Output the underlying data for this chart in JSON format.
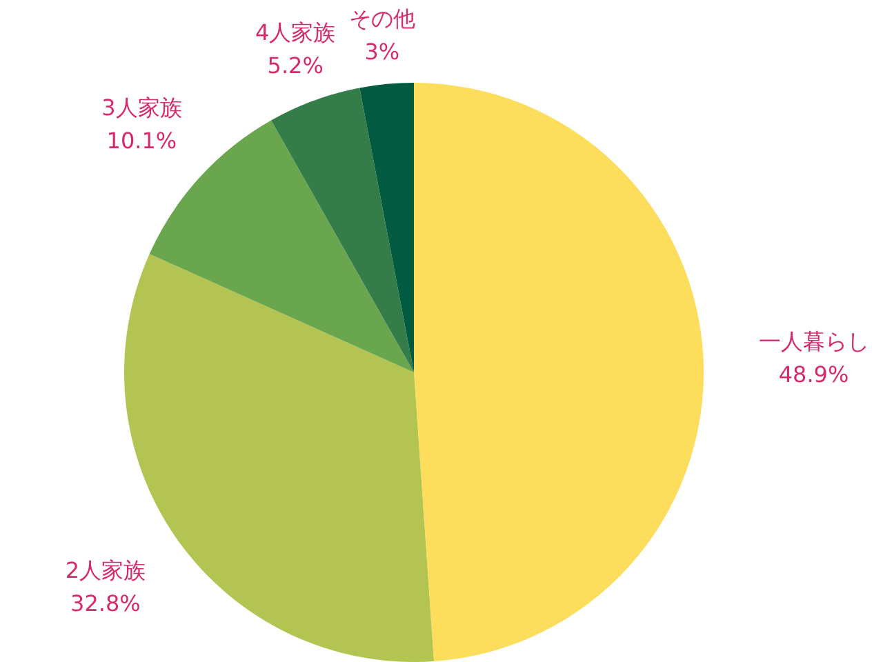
{
  "chart_data": {
    "type": "pie",
    "categories": [
      "一人暮らし",
      "2人家族",
      "3人家族",
      "4人家族",
      "その他"
    ],
    "values": [
      48.9,
      32.8,
      10.1,
      5.2,
      3
    ],
    "colors": [
      "#fddd5c",
      "#b3c453",
      "#6aa64e",
      "#347d49",
      "#025a40"
    ],
    "value_labels": [
      "48.9%",
      "32.8%",
      "10.1%",
      "5.2%",
      "3%"
    ]
  }
}
